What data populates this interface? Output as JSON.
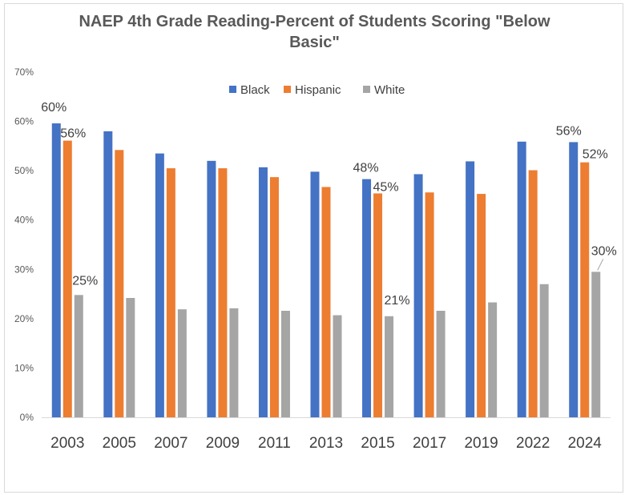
{
  "chart_data": {
    "type": "bar",
    "title": "NAEP 4th Grade Reading-Percent of Students Scoring \"Below Basic\"",
    "title_lines": [
      "NAEP 4th Grade Reading-Percent of Students Scoring \"Below",
      "Basic\""
    ],
    "categories": [
      "2003",
      "2005",
      "2007",
      "2009",
      "2011",
      "2013",
      "2015",
      "2017",
      "2019",
      "2022",
      "2024"
    ],
    "series": [
      {
        "name": "Black",
        "color": "#4472c4",
        "values": [
          59.6,
          58.0,
          53.5,
          52.0,
          50.7,
          49.8,
          48.3,
          49.3,
          51.9,
          55.9,
          55.8
        ]
      },
      {
        "name": "Hispanic",
        "color": "#ed7d31",
        "values": [
          56.1,
          54.2,
          50.5,
          50.5,
          48.7,
          46.7,
          45.4,
          45.6,
          45.3,
          50.1,
          51.7
        ]
      },
      {
        "name": "White",
        "color": "#a5a5a5",
        "values": [
          24.8,
          24.2,
          21.9,
          22.1,
          21.6,
          20.7,
          20.5,
          21.6,
          23.3,
          27.0,
          29.5
        ]
      }
    ],
    "ylim": [
      0,
      70
    ],
    "yticks": [
      "0%",
      "10%",
      "20%",
      "30%",
      "40%",
      "50%",
      "60%",
      "70%"
    ],
    "legend_position": "top",
    "data_labels": [
      {
        "series": 0,
        "category": 0,
        "text": "60%"
      },
      {
        "series": 1,
        "category": 0,
        "text": "56%"
      },
      {
        "series": 2,
        "category": 0,
        "text": "25%"
      },
      {
        "series": 0,
        "category": 6,
        "text": "48%"
      },
      {
        "series": 1,
        "category": 6,
        "text": "45%"
      },
      {
        "series": 2,
        "category": 6,
        "text": "21%"
      },
      {
        "series": 0,
        "category": 10,
        "text": "56%"
      },
      {
        "series": 1,
        "category": 10,
        "text": "52%"
      },
      {
        "series": 2,
        "category": 10,
        "text": "30%"
      }
    ]
  }
}
